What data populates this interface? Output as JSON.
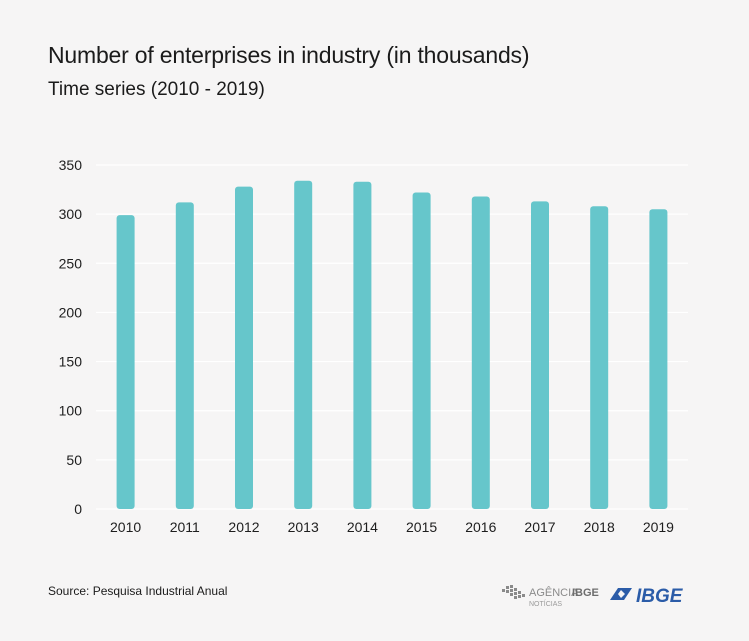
{
  "header": {
    "title": "Number of enterprises in industry (in thousands)",
    "subtitle": "Time series (2010 - 2019)"
  },
  "footer": {
    "source": "Source: Pesquisa Industrial Anual",
    "agency_logo_text": "AGÊNCIA",
    "agency_logo_brand": "IBGE",
    "agency_logo_sub": "NOTÍCIAS",
    "ibge_logo_text": "IBGE"
  },
  "colors": {
    "bar": "#66c6cb",
    "grid": "#ffffff",
    "axis_text": "#1e1e1e",
    "logo_gray": "#8a8a8a",
    "logo_blue": "#2b5ca8"
  },
  "chart_data": {
    "type": "bar",
    "title": "Number of enterprises in industry (in thousands)",
    "subtitle": "Time series (2010 - 2019)",
    "categories": [
      "2010",
      "2011",
      "2012",
      "2013",
      "2014",
      "2015",
      "2016",
      "2017",
      "2018",
      "2019"
    ],
    "values": [
      299,
      312,
      328,
      334,
      333,
      322,
      318,
      313,
      308,
      305
    ],
    "ylim": [
      0,
      350
    ],
    "yticks": [
      0,
      50,
      100,
      150,
      200,
      250,
      300,
      350
    ],
    "xlabel": "",
    "ylabel": "",
    "grid": true,
    "legend": "none"
  }
}
